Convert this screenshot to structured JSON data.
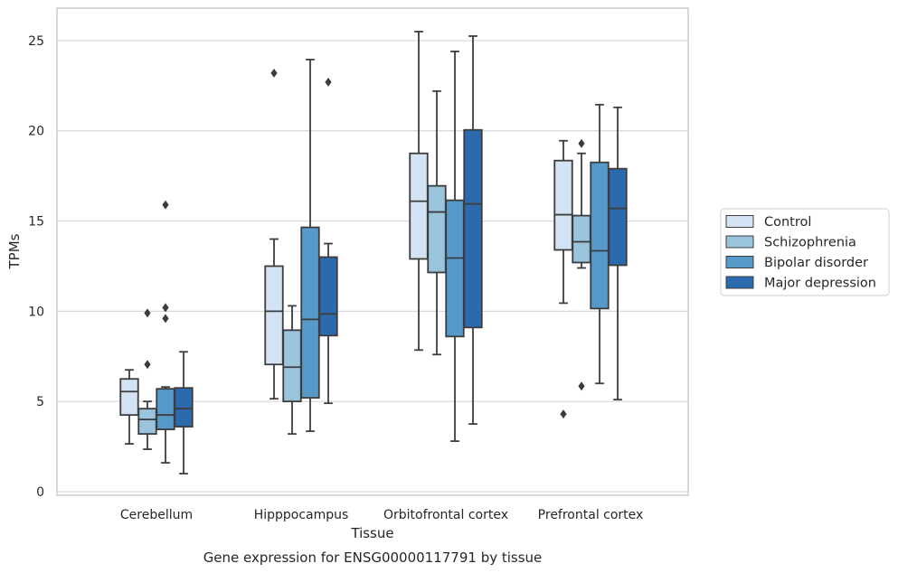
{
  "chart_data": {
    "type": "box",
    "xlabel": "Tissue",
    "ylabel": "TPMs",
    "caption": "Gene expression for ENSG00000117791 by tissue",
    "categories": [
      "Cerebellum",
      "Hipppocampus",
      "Orbitofrontal cortex",
      "Prefrontal cortex"
    ],
    "ylim": [
      -0.2,
      26.8
    ],
    "yticks": [
      0,
      5,
      10,
      15,
      20,
      25
    ],
    "grid": "horizontal",
    "legend_position": "right",
    "series": [
      {
        "name": "Control",
        "color": "#d4e3f3",
        "boxes": [
          {
            "whislo": 2.65,
            "q1": 4.25,
            "med": 5.55,
            "q3": 6.25,
            "whishi": 6.75,
            "fliers": []
          },
          {
            "whislo": 5.15,
            "q1": 7.05,
            "med": 10.0,
            "q3": 12.5,
            "whishi": 14.0,
            "fliers": [
              23.2
            ]
          },
          {
            "whislo": 7.85,
            "q1": 12.9,
            "med": 16.1,
            "q3": 18.75,
            "whishi": 25.5,
            "fliers": []
          },
          {
            "whislo": 10.45,
            "q1": 13.4,
            "med": 15.35,
            "q3": 18.35,
            "whishi": 19.45,
            "fliers": [
              4.3
            ]
          }
        ]
      },
      {
        "name": "Schizophrenia",
        "color": "#9ac3dc",
        "boxes": [
          {
            "whislo": 2.35,
            "q1": 3.2,
            "med": 4.0,
            "q3": 4.6,
            "whishi": 5.0,
            "fliers": [
              9.9,
              7.05
            ]
          },
          {
            "whislo": 3.2,
            "q1": 5.0,
            "med": 6.9,
            "q3": 8.95,
            "whishi": 10.3,
            "fliers": []
          },
          {
            "whislo": 7.6,
            "q1": 12.15,
            "med": 15.5,
            "q3": 16.95,
            "whishi": 22.2,
            "fliers": []
          },
          {
            "whislo": 12.4,
            "q1": 12.7,
            "med": 13.85,
            "q3": 15.3,
            "whishi": 18.75,
            "fliers": [
              19.3,
              5.85
            ]
          }
        ]
      },
      {
        "name": "Bipolar disorder",
        "color": "#5799c8",
        "boxes": [
          {
            "whislo": 1.6,
            "q1": 3.45,
            "med": 4.25,
            "q3": 5.7,
            "whishi": 5.8,
            "fliers": [
              15.9,
              10.2,
              9.6
            ]
          },
          {
            "whislo": 3.35,
            "q1": 5.2,
            "med": 9.55,
            "q3": 14.65,
            "whishi": 23.95,
            "fliers": []
          },
          {
            "whislo": 2.8,
            "q1": 8.6,
            "med": 12.95,
            "q3": 16.15,
            "whishi": 24.4,
            "fliers": []
          },
          {
            "whislo": 6.0,
            "q1": 10.15,
            "med": 13.35,
            "q3": 18.25,
            "whishi": 21.45,
            "fliers": []
          }
        ]
      },
      {
        "name": "Major depression",
        "color": "#2a6aad",
        "boxes": [
          {
            "whislo": 1.0,
            "q1": 3.6,
            "med": 4.6,
            "q3": 5.75,
            "whishi": 7.75,
            "fliers": []
          },
          {
            "whislo": 4.9,
            "q1": 8.65,
            "med": 9.85,
            "q3": 13.0,
            "whishi": 13.75,
            "fliers": [
              22.7
            ]
          },
          {
            "whislo": 3.75,
            "q1": 9.1,
            "med": 15.95,
            "q3": 20.05,
            "whishi": 25.25,
            "fliers": []
          },
          {
            "whislo": 5.1,
            "q1": 12.55,
            "med": 15.7,
            "q3": 17.9,
            "whishi": 21.3,
            "fliers": []
          }
        ]
      }
    ]
  }
}
